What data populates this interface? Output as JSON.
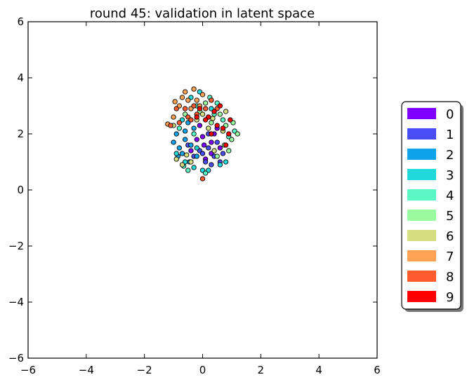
{
  "chart_data": {
    "type": "scatter",
    "title": "round 45: validation in latent space",
    "xlabel": "",
    "ylabel": "",
    "xlim": [
      -6,
      6
    ],
    "ylim": [
      -6,
      6
    ],
    "xticks": [
      "−6",
      "−4",
      "−2",
      "0",
      "2",
      "4",
      "6"
    ],
    "yticks": [
      "6",
      "4",
      "2",
      "0",
      "−2",
      "−4",
      "−6"
    ],
    "grid": false,
    "legend_position": "right",
    "series": [
      {
        "name": "0",
        "color": "#7f00ff",
        "points": [
          [
            0.05,
            1.6
          ],
          [
            0.3,
            1.3
          ],
          [
            -0.2,
            1.8
          ],
          [
            0.4,
            2.0
          ],
          [
            0.1,
            1.1
          ],
          [
            -0.1,
            2.3
          ],
          [
            0.6,
            1.5
          ],
          [
            0.2,
            2.6
          ],
          [
            -0.4,
            1.4
          ],
          [
            0.5,
            2.2
          ],
          [
            0.0,
            1.9
          ],
          [
            0.3,
            1.7
          ]
        ]
      },
      {
        "name": "1",
        "color": "#4a4df5",
        "points": [
          [
            0.1,
            1.0
          ],
          [
            0.4,
            1.2
          ],
          [
            -0.3,
            1.2
          ],
          [
            0.2,
            1.5
          ],
          [
            0.6,
            1.0
          ],
          [
            -0.1,
            1.4
          ],
          [
            0.3,
            0.9
          ],
          [
            0.0,
            1.3
          ],
          [
            0.5,
            1.7
          ],
          [
            -0.5,
            1.6
          ],
          [
            0.2,
            2.0
          ],
          [
            0.7,
            1.3
          ]
        ]
      },
      {
        "name": "2",
        "color": "#0ea3ea",
        "points": [
          [
            -0.8,
            1.5
          ],
          [
            -0.6,
            1.8
          ],
          [
            -0.9,
            2.0
          ],
          [
            -0.4,
            1.6
          ],
          [
            -0.7,
            1.3
          ],
          [
            -0.3,
            2.2
          ],
          [
            -1.0,
            1.7
          ],
          [
            -0.5,
            2.4
          ],
          [
            -0.2,
            1.2
          ],
          [
            -0.6,
            2.1
          ],
          [
            -0.85,
            1.2
          ],
          [
            -0.45,
            1.0
          ]
        ]
      },
      {
        "name": "3",
        "color": "#22d9da",
        "points": [
          [
            -0.6,
            1.0
          ],
          [
            -0.3,
            0.8
          ],
          [
            -0.9,
            1.3
          ],
          [
            0.0,
            0.7
          ],
          [
            -0.2,
            1.5
          ],
          [
            0.2,
            0.7
          ],
          [
            -0.7,
            2.5
          ],
          [
            0.6,
            0.9
          ],
          [
            -0.4,
            3.3
          ],
          [
            0.3,
            2.9
          ],
          [
            -0.1,
            3.5
          ],
          [
            0.8,
            1.0
          ]
        ]
      },
      {
        "name": "4",
        "color": "#5af7c4",
        "points": [
          [
            -0.5,
            0.7
          ],
          [
            0.1,
            0.6
          ],
          [
            -0.2,
            3.0
          ],
          [
            0.4,
            2.7
          ],
          [
            -0.8,
            2.2
          ],
          [
            0.9,
            1.9
          ],
          [
            0.5,
            3.1
          ],
          [
            -0.3,
            2.0
          ],
          [
            1.1,
            2.1
          ],
          [
            0.7,
            2.5
          ],
          [
            -0.65,
            0.85
          ],
          [
            0.25,
            3.3
          ]
        ]
      },
      {
        "name": "5",
        "color": "#9afa9f",
        "points": [
          [
            0.8,
            2.3
          ],
          [
            1.0,
            1.8
          ],
          [
            0.6,
            2.7
          ],
          [
            -0.1,
            2.8
          ],
          [
            0.3,
            2.4
          ],
          [
            1.2,
            2.0
          ],
          [
            0.9,
            1.4
          ],
          [
            -0.6,
            2.7
          ],
          [
            0.5,
            1.2
          ],
          [
            0.1,
            3.1
          ],
          [
            1.05,
            2.4
          ],
          [
            0.75,
            1.6
          ]
        ]
      },
      {
        "name": "6",
        "color": "#d4dd80",
        "points": [
          [
            -0.7,
            0.9
          ],
          [
            -0.4,
            1.0
          ],
          [
            0.2,
            2.2
          ],
          [
            -0.9,
            1.1
          ],
          [
            0.7,
            2.1
          ],
          [
            -0.2,
            2.5
          ],
          [
            0.4,
            1.4
          ],
          [
            -1.0,
            2.3
          ],
          [
            0.0,
            2.7
          ],
          [
            0.8,
            2.8
          ],
          [
            -0.55,
            1.25
          ],
          [
            0.35,
            2.55
          ]
        ]
      },
      {
        "name": "7",
        "color": "#ffa256",
        "points": [
          [
            -0.3,
            3.6
          ],
          [
            -0.6,
            3.5
          ],
          [
            -0.8,
            3.0
          ],
          [
            -0.5,
            3.2
          ],
          [
            0.0,
            3.4
          ],
          [
            -0.2,
            3.2
          ],
          [
            -1.0,
            2.6
          ],
          [
            -1.2,
            2.35
          ],
          [
            -0.7,
            3.3
          ],
          [
            -0.4,
            2.9
          ],
          [
            -0.95,
            3.15
          ],
          [
            -0.1,
            3.0
          ]
        ]
      },
      {
        "name": "8",
        "color": "#ff5b2e",
        "points": [
          [
            -0.9,
            2.9
          ],
          [
            -0.5,
            2.6
          ],
          [
            -0.3,
            3.0
          ],
          [
            0.1,
            2.9
          ],
          [
            -0.8,
            2.4
          ],
          [
            -1.1,
            2.3
          ],
          [
            0.0,
            0.4
          ],
          [
            -0.2,
            2.7
          ],
          [
            0.3,
            3.2
          ],
          [
            -0.6,
            2.9
          ],
          [
            0.5,
            2.9
          ],
          [
            -0.4,
            2.5
          ]
        ]
      },
      {
        "name": "9",
        "color": "#ff0000",
        "points": [
          [
            -0.1,
            2.9
          ],
          [
            0.2,
            2.6
          ],
          [
            0.6,
            3.0
          ],
          [
            0.9,
            2.0
          ],
          [
            0.5,
            2.3
          ],
          [
            -0.2,
            2.6
          ],
          [
            0.3,
            2.0
          ],
          [
            0.8,
            1.6
          ],
          [
            0.4,
            2.8
          ],
          [
            0.7,
            2.2
          ],
          [
            0.1,
            2.5
          ],
          [
            0.95,
            2.5
          ]
        ]
      }
    ]
  }
}
